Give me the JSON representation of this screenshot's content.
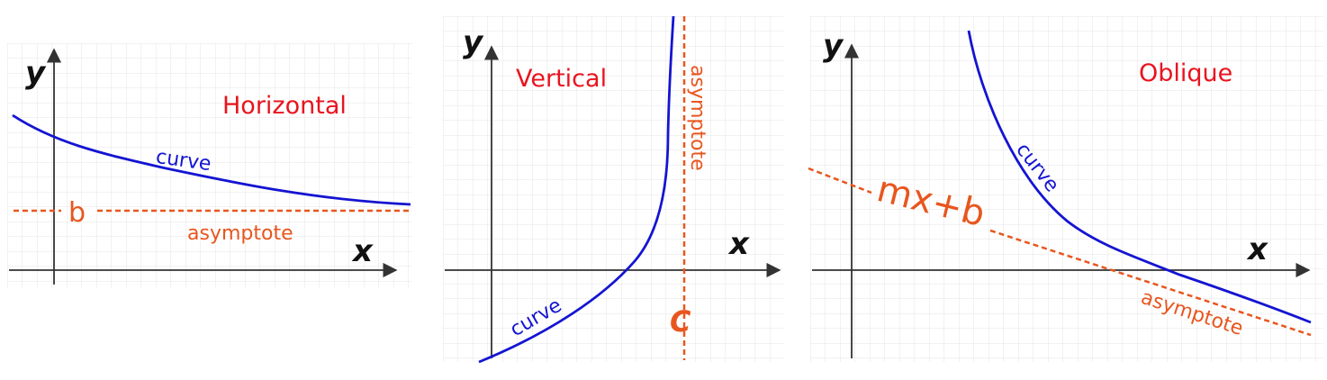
{
  "colors": {
    "title": "#e8141e",
    "curve": "#1414d2",
    "asymptote": "#e8561e",
    "axis": "#333333",
    "grid": "#e4e4e4"
  },
  "panels": [
    {
      "title": "Horizontal",
      "x_label": "x",
      "y_label": "y",
      "curve_label": "curve",
      "asymptote_label": "asymptote",
      "asymptote_value": "b"
    },
    {
      "title": "Vertical",
      "x_label": "x",
      "y_label": "y",
      "curve_label": "curve",
      "asymptote_label": "asymptote",
      "asymptote_value": "C"
    },
    {
      "title": "Oblique",
      "x_label": "x",
      "y_label": "y",
      "curve_label": "curve",
      "asymptote_label": "asymptote",
      "asymptote_value": "mx+b"
    }
  ]
}
